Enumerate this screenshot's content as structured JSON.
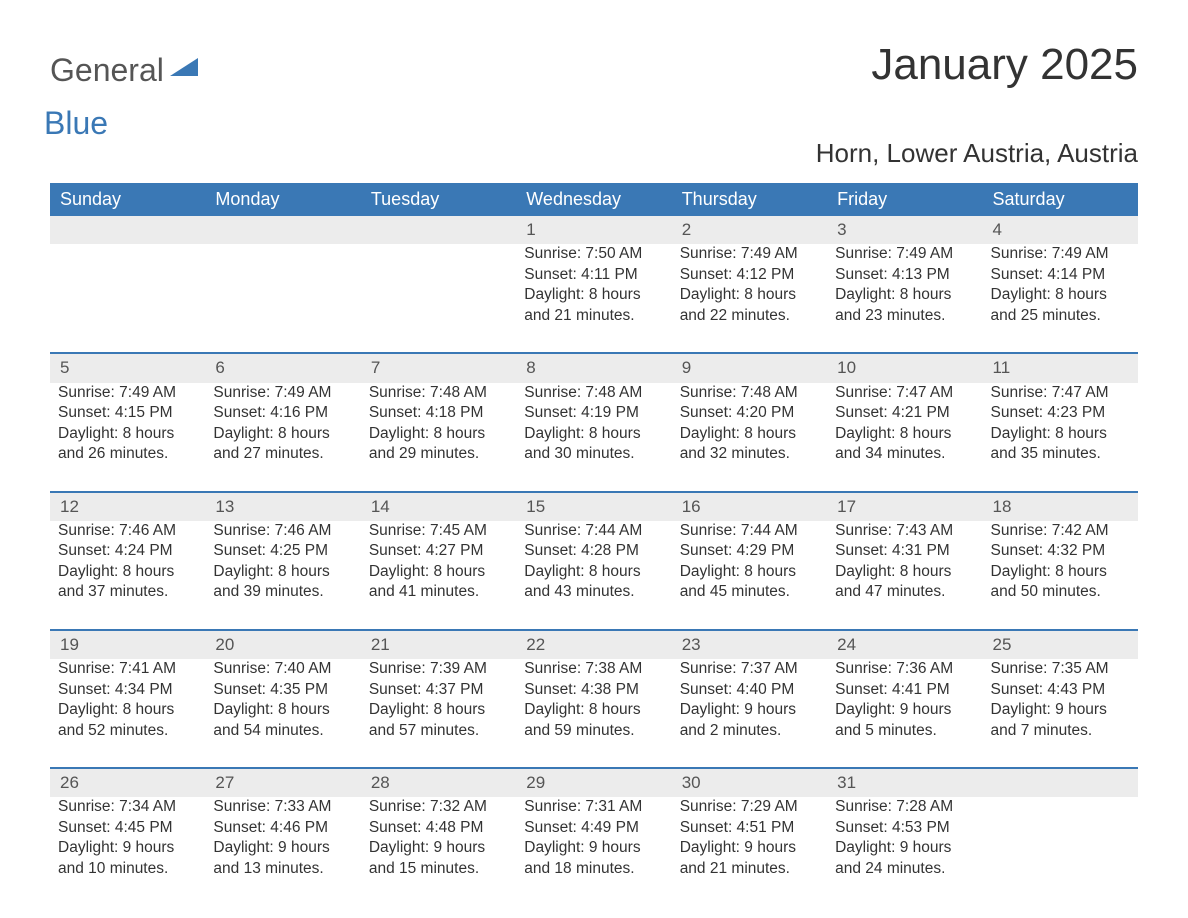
{
  "logo": {
    "word1": "General",
    "word2": "Blue"
  },
  "title": "January 2025",
  "location": "Horn, Lower Austria, Austria",
  "colors": {
    "header_bg": "#3a78b5",
    "header_text": "#ffffff",
    "daynum_bg": "#ececec",
    "daynum_border": "#3a78b5",
    "body_text": "#333333",
    "logo_gray": "#555555",
    "logo_blue": "#3a78b5",
    "page_bg": "#ffffff"
  },
  "typography": {
    "title_fontsize": 44,
    "subtitle_fontsize": 26,
    "header_fontsize": 18,
    "daynum_fontsize": 17,
    "cell_fontsize": 15.5,
    "font_family": "Arial"
  },
  "layout": {
    "columns": 7,
    "weeks": 5,
    "first_weekday_index": 3
  },
  "weekdays": [
    "Sunday",
    "Monday",
    "Tuesday",
    "Wednesday",
    "Thursday",
    "Friday",
    "Saturday"
  ],
  "weeks": [
    [
      null,
      null,
      null,
      {
        "n": "1",
        "sr": "Sunrise: 7:50 AM",
        "ss": "Sunset: 4:11 PM",
        "d1": "Daylight: 8 hours",
        "d2": "and 21 minutes."
      },
      {
        "n": "2",
        "sr": "Sunrise: 7:49 AM",
        "ss": "Sunset: 4:12 PM",
        "d1": "Daylight: 8 hours",
        "d2": "and 22 minutes."
      },
      {
        "n": "3",
        "sr": "Sunrise: 7:49 AM",
        "ss": "Sunset: 4:13 PM",
        "d1": "Daylight: 8 hours",
        "d2": "and 23 minutes."
      },
      {
        "n": "4",
        "sr": "Sunrise: 7:49 AM",
        "ss": "Sunset: 4:14 PM",
        "d1": "Daylight: 8 hours",
        "d2": "and 25 minutes."
      }
    ],
    [
      {
        "n": "5",
        "sr": "Sunrise: 7:49 AM",
        "ss": "Sunset: 4:15 PM",
        "d1": "Daylight: 8 hours",
        "d2": "and 26 minutes."
      },
      {
        "n": "6",
        "sr": "Sunrise: 7:49 AM",
        "ss": "Sunset: 4:16 PM",
        "d1": "Daylight: 8 hours",
        "d2": "and 27 minutes."
      },
      {
        "n": "7",
        "sr": "Sunrise: 7:48 AM",
        "ss": "Sunset: 4:18 PM",
        "d1": "Daylight: 8 hours",
        "d2": "and 29 minutes."
      },
      {
        "n": "8",
        "sr": "Sunrise: 7:48 AM",
        "ss": "Sunset: 4:19 PM",
        "d1": "Daylight: 8 hours",
        "d2": "and 30 minutes."
      },
      {
        "n": "9",
        "sr": "Sunrise: 7:48 AM",
        "ss": "Sunset: 4:20 PM",
        "d1": "Daylight: 8 hours",
        "d2": "and 32 minutes."
      },
      {
        "n": "10",
        "sr": "Sunrise: 7:47 AM",
        "ss": "Sunset: 4:21 PM",
        "d1": "Daylight: 8 hours",
        "d2": "and 34 minutes."
      },
      {
        "n": "11",
        "sr": "Sunrise: 7:47 AM",
        "ss": "Sunset: 4:23 PM",
        "d1": "Daylight: 8 hours",
        "d2": "and 35 minutes."
      }
    ],
    [
      {
        "n": "12",
        "sr": "Sunrise: 7:46 AM",
        "ss": "Sunset: 4:24 PM",
        "d1": "Daylight: 8 hours",
        "d2": "and 37 minutes."
      },
      {
        "n": "13",
        "sr": "Sunrise: 7:46 AM",
        "ss": "Sunset: 4:25 PM",
        "d1": "Daylight: 8 hours",
        "d2": "and 39 minutes."
      },
      {
        "n": "14",
        "sr": "Sunrise: 7:45 AM",
        "ss": "Sunset: 4:27 PM",
        "d1": "Daylight: 8 hours",
        "d2": "and 41 minutes."
      },
      {
        "n": "15",
        "sr": "Sunrise: 7:44 AM",
        "ss": "Sunset: 4:28 PM",
        "d1": "Daylight: 8 hours",
        "d2": "and 43 minutes."
      },
      {
        "n": "16",
        "sr": "Sunrise: 7:44 AM",
        "ss": "Sunset: 4:29 PM",
        "d1": "Daylight: 8 hours",
        "d2": "and 45 minutes."
      },
      {
        "n": "17",
        "sr": "Sunrise: 7:43 AM",
        "ss": "Sunset: 4:31 PM",
        "d1": "Daylight: 8 hours",
        "d2": "and 47 minutes."
      },
      {
        "n": "18",
        "sr": "Sunrise: 7:42 AM",
        "ss": "Sunset: 4:32 PM",
        "d1": "Daylight: 8 hours",
        "d2": "and 50 minutes."
      }
    ],
    [
      {
        "n": "19",
        "sr": "Sunrise: 7:41 AM",
        "ss": "Sunset: 4:34 PM",
        "d1": "Daylight: 8 hours",
        "d2": "and 52 minutes."
      },
      {
        "n": "20",
        "sr": "Sunrise: 7:40 AM",
        "ss": "Sunset: 4:35 PM",
        "d1": "Daylight: 8 hours",
        "d2": "and 54 minutes."
      },
      {
        "n": "21",
        "sr": "Sunrise: 7:39 AM",
        "ss": "Sunset: 4:37 PM",
        "d1": "Daylight: 8 hours",
        "d2": "and 57 minutes."
      },
      {
        "n": "22",
        "sr": "Sunrise: 7:38 AM",
        "ss": "Sunset: 4:38 PM",
        "d1": "Daylight: 8 hours",
        "d2": "and 59 minutes."
      },
      {
        "n": "23",
        "sr": "Sunrise: 7:37 AM",
        "ss": "Sunset: 4:40 PM",
        "d1": "Daylight: 9 hours",
        "d2": "and 2 minutes."
      },
      {
        "n": "24",
        "sr": "Sunrise: 7:36 AM",
        "ss": "Sunset: 4:41 PM",
        "d1": "Daylight: 9 hours",
        "d2": "and 5 minutes."
      },
      {
        "n": "25",
        "sr": "Sunrise: 7:35 AM",
        "ss": "Sunset: 4:43 PM",
        "d1": "Daylight: 9 hours",
        "d2": "and 7 minutes."
      }
    ],
    [
      {
        "n": "26",
        "sr": "Sunrise: 7:34 AM",
        "ss": "Sunset: 4:45 PM",
        "d1": "Daylight: 9 hours",
        "d2": "and 10 minutes."
      },
      {
        "n": "27",
        "sr": "Sunrise: 7:33 AM",
        "ss": "Sunset: 4:46 PM",
        "d1": "Daylight: 9 hours",
        "d2": "and 13 minutes."
      },
      {
        "n": "28",
        "sr": "Sunrise: 7:32 AM",
        "ss": "Sunset: 4:48 PM",
        "d1": "Daylight: 9 hours",
        "d2": "and 15 minutes."
      },
      {
        "n": "29",
        "sr": "Sunrise: 7:31 AM",
        "ss": "Sunset: 4:49 PM",
        "d1": "Daylight: 9 hours",
        "d2": "and 18 minutes."
      },
      {
        "n": "30",
        "sr": "Sunrise: 7:29 AM",
        "ss": "Sunset: 4:51 PM",
        "d1": "Daylight: 9 hours",
        "d2": "and 21 minutes."
      },
      {
        "n": "31",
        "sr": "Sunrise: 7:28 AM",
        "ss": "Sunset: 4:53 PM",
        "d1": "Daylight: 9 hours",
        "d2": "and 24 minutes."
      },
      null
    ]
  ]
}
